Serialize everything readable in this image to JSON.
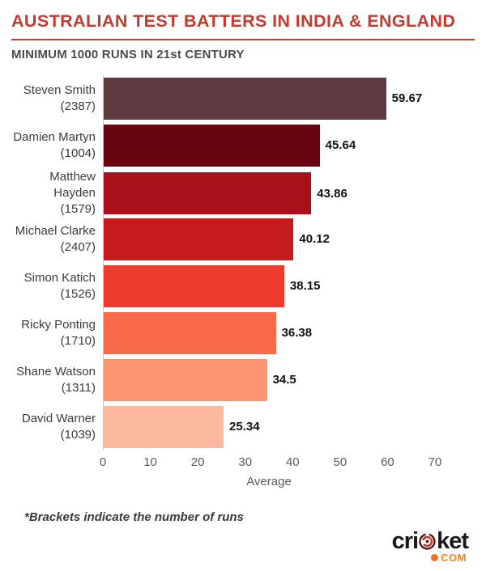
{
  "header": {
    "title": "AUSTRALIAN TEST BATTERS IN INDIA & ENGLAND",
    "subtitle": "MINIMUM 1000 RUNS IN 21st CENTURY"
  },
  "chart_data": {
    "type": "bar",
    "orientation": "horizontal",
    "title": "AUSTRALIAN TEST BATTERS IN INDIA & ENGLAND",
    "subtitle": "MINIMUM 1000 RUNS IN 21st CENTURY",
    "categories": [
      "Steven Smith",
      "Damien Martyn",
      "Matthew Hayden",
      "Michael Clarke",
      "Simon Katich",
      "Ricky Ponting",
      "Shane Watson",
      "David Warner"
    ],
    "runs": [
      2387,
      1004,
      1579,
      2407,
      1526,
      1710,
      1311,
      1039
    ],
    "runs_labels": [
      "(2387)",
      "(1004)",
      "(1579)",
      "(2407)",
      "(1526)",
      "(1710)",
      "(1311)",
      "(1039)"
    ],
    "values": [
      59.67,
      45.64,
      43.86,
      40.12,
      38.15,
      36.38,
      34.5,
      25.34
    ],
    "value_labels": [
      "59.67",
      "45.64",
      "43.86",
      "40.12",
      "38.15",
      "36.38",
      "34.5",
      "25.34"
    ],
    "bar_colors": [
      "#5E3A40",
      "#670511",
      "#A8111A",
      "#C71A1D",
      "#EE3B2D",
      "#F96A4B",
      "#FB9470",
      "#FDB99D"
    ],
    "xlabel": "Average",
    "x_ticks": [
      0,
      10,
      20,
      30,
      40,
      50,
      60,
      70
    ],
    "xlim": [
      0,
      70
    ],
    "grid": false,
    "legend": "none"
  },
  "footer": {
    "note": "*Brackets indicate the number of runs"
  },
  "logo": {
    "word_start": "cri",
    "word_end": "ket",
    "com": "COM"
  },
  "colors": {
    "accent_red": "#C23B2E",
    "subtitle_gray": "#4A4A4A",
    "axis_gray": "#5a5a5a",
    "logo_orange": "#F4831F"
  }
}
